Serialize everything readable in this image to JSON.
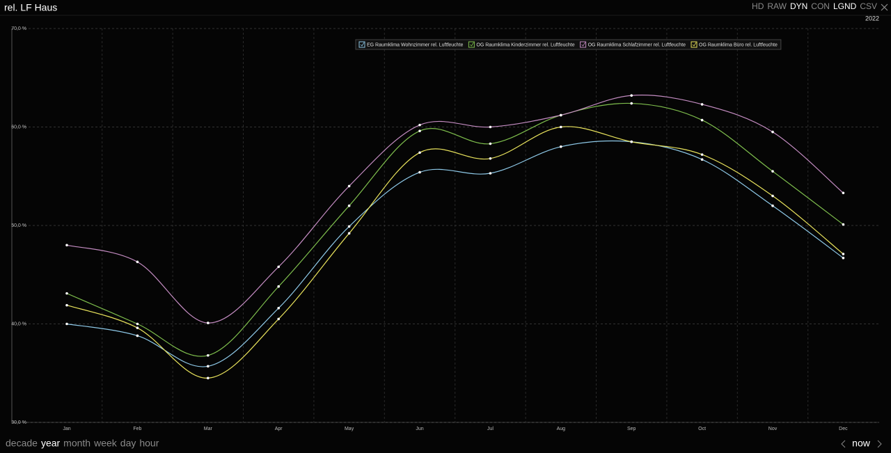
{
  "header": {
    "title": "rel. LF Haus",
    "options": [
      {
        "label": "HD",
        "active": false
      },
      {
        "label": "RAW",
        "active": false
      },
      {
        "label": "DYN",
        "active": true
      },
      {
        "label": "CON",
        "active": false
      },
      {
        "label": "LGND",
        "active": true
      },
      {
        "label": "CSV",
        "active": false
      }
    ],
    "year": "2022"
  },
  "chart_data": {
    "type": "line",
    "categories": [
      "Jan",
      "Feb",
      "Mar",
      "Apr",
      "May",
      "Jun",
      "Jul",
      "Aug",
      "Sep",
      "Oct",
      "Nov",
      "Dec"
    ],
    "series": [
      {
        "name": "EG Raumklima Wohnzimmer rel. Luftfeuchte",
        "color": "#8ec9e8",
        "values": [
          40.0,
          38.8,
          35.7,
          41.6,
          49.9,
          55.4,
          55.3,
          58.0,
          58.5,
          56.7,
          52.0,
          46.7
        ]
      },
      {
        "name": "OG Raumklima Kinderzimmer rel. Luftfeuchte",
        "color": "#7fbf4d",
        "values": [
          43.1,
          40.0,
          36.8,
          43.8,
          52.0,
          59.6,
          58.3,
          61.2,
          62.4,
          60.7,
          55.5,
          50.1
        ]
      },
      {
        "name": "OG Raumklima Schlafzimmer rel. Luftfeuchte",
        "color": "#c48cc2",
        "values": [
          48.0,
          46.3,
          40.1,
          45.8,
          54.0,
          60.2,
          60.0,
          61.2,
          63.2,
          62.3,
          59.5,
          53.3
        ]
      },
      {
        "name": "OG Raumklima Büro rel. Luftfeuchte",
        "color": "#e9e35c",
        "values": [
          41.9,
          39.6,
          34.5,
          40.5,
          49.2,
          57.4,
          56.8,
          60.0,
          58.5,
          57.2,
          53.0,
          47.1
        ]
      }
    ],
    "ylim": [
      30,
      70
    ],
    "yticks": [
      {
        "value": 30,
        "label": "30,0 %"
      },
      {
        "value": 40,
        "label": "40,0 %"
      },
      {
        "value": 50,
        "label": "50,0 %"
      },
      {
        "value": 60,
        "label": "60,0 %"
      },
      {
        "value": 70,
        "label": "70,0 %"
      }
    ],
    "grid": true,
    "legend": "top"
  },
  "footer": {
    "ranges": [
      {
        "label": "decade",
        "active": false
      },
      {
        "label": "year",
        "active": true
      },
      {
        "label": "month",
        "active": false
      },
      {
        "label": "week",
        "active": false
      },
      {
        "label": "day",
        "active": false
      },
      {
        "label": "hour",
        "active": false
      }
    ],
    "now": "now"
  }
}
